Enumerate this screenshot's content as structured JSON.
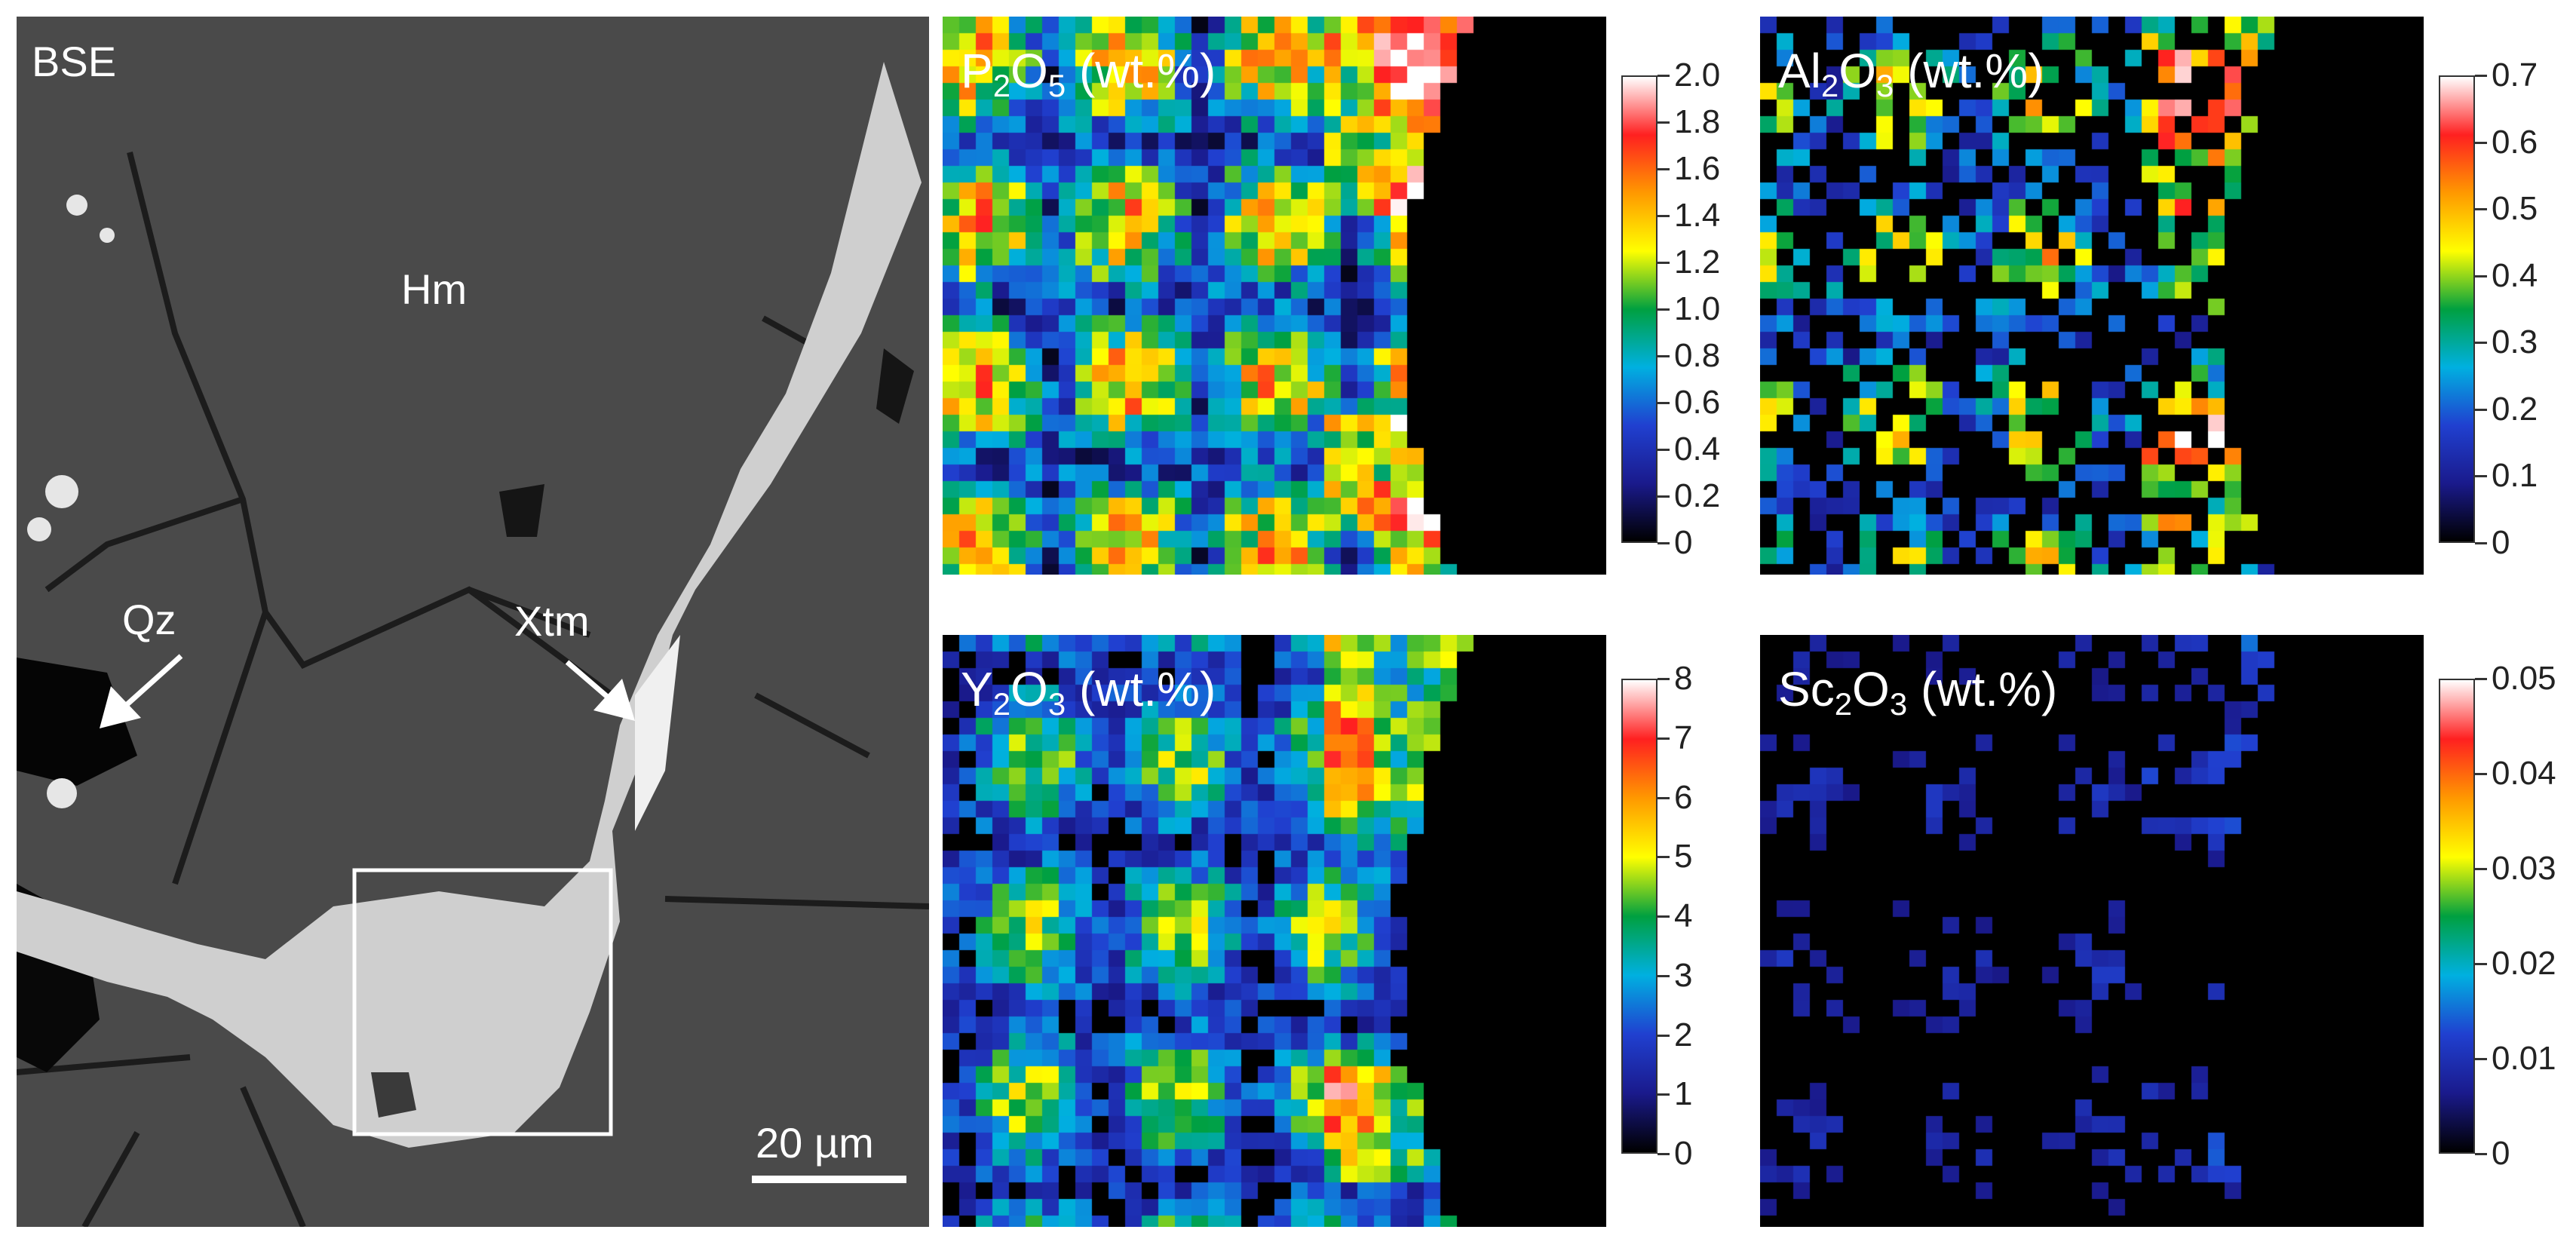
{
  "bse_panel": {
    "label": "BSE",
    "phase_hm": "Hm",
    "phase_qz": "Qz",
    "phase_xtm": "Xtm",
    "scale_bar": "20 µm"
  },
  "maps": [
    {
      "id": "p2o5",
      "formula_main": "P",
      "formula_sub1": "2",
      "formula_mid": "O",
      "formula_sub2": "5",
      "unit": " (wt.%)",
      "colorbar_ticks": [
        "2.0",
        "1.8",
        "1.6",
        "1.4",
        "1.2",
        "1.0",
        "0.8",
        "0.6",
        "0.4",
        "0.2",
        "0"
      ]
    },
    {
      "id": "al2o3",
      "formula_main": "Al",
      "formula_sub1": "2",
      "formula_mid": "O",
      "formula_sub2": "3",
      "unit": " (wt.%)",
      "colorbar_ticks": [
        "0.7",
        "0.6",
        "0.5",
        "0.4",
        "0.3",
        "0.2",
        "0.1",
        "0"
      ]
    },
    {
      "id": "y2o3",
      "formula_main": "Y",
      "formula_sub1": "2",
      "formula_mid": "O",
      "formula_sub2": "3",
      "unit": " (wt.%)",
      "colorbar_ticks": [
        "8",
        "7",
        "6",
        "5",
        "4",
        "3",
        "2",
        "1",
        "0"
      ]
    },
    {
      "id": "sc2o3",
      "formula_main": "Sc",
      "formula_sub1": "2",
      "formula_mid": "O",
      "formula_sub2": "3",
      "unit": " (wt.%)",
      "colorbar_ticks": [
        "0.05",
        "0.04",
        "0.03",
        "0.02",
        "0.01",
        "0"
      ]
    }
  ],
  "colors": {
    "bse_background": "#4a4a4a",
    "map_background": "#000000",
    "rainbow": [
      "#000000",
      "#1a1a8c",
      "#2040d0",
      "#00b0e0",
      "#00a040",
      "#ffff00",
      "#ff9900",
      "#ff2020",
      "#ffffff"
    ]
  }
}
